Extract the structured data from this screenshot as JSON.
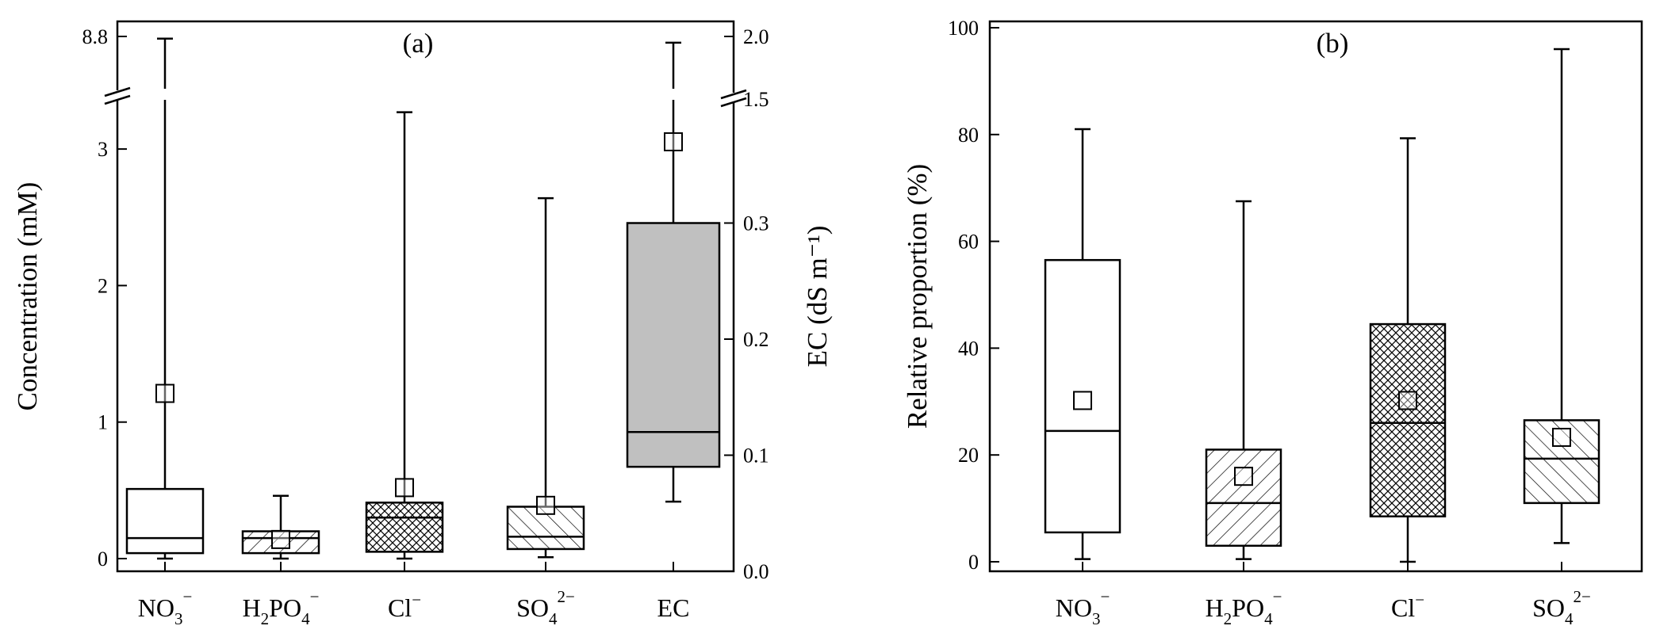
{
  "chart_data": [
    {
      "panel_label": "(a)",
      "type": "box",
      "ylabel": "Concentration (mM)",
      "y2label": "EC (dS m⁻¹)",
      "categories": [
        {
          "main": "NO",
          "sub": "3",
          "sup": "−"
        },
        {
          "main": "H",
          "sub": "2",
          "main2": "PO",
          "sub2": "4",
          "sup": "−"
        },
        {
          "main": "Cl",
          "sup": "−"
        },
        {
          "main": "SO",
          "sub": "4",
          "sup": "2−"
        },
        {
          "main": "EC"
        }
      ],
      "ylim": [
        -0.08,
        3.82
      ],
      "y_break": {
        "lower_max": 3.4,
        "upper_tick": 8.8
      },
      "y_ticks": [
        "0",
        "1",
        "2",
        "3",
        "8.8"
      ],
      "y2lim": [
        0.0,
        1.5
      ],
      "y2_break": {
        "upper_max": 2.0
      },
      "y2_ticks": [
        "0.0",
        "0.1",
        "0.2",
        "0.3",
        "1.5",
        "2.0"
      ],
      "boxes": [
        {
          "category": "NO3-",
          "min": 0.0,
          "q1": 0.04,
          "median": 0.15,
          "q3": 0.51,
          "max": 8.6,
          "mean": 1.21,
          "pattern": "none",
          "axis": "left"
        },
        {
          "category": "H2PO4-",
          "min": 0.0,
          "q1": 0.04,
          "median": 0.15,
          "q3": 0.2,
          "max": 0.46,
          "mean": 0.14,
          "pattern": "diagonal",
          "axis": "left"
        },
        {
          "category": "Cl-",
          "min": 0.0,
          "q1": 0.05,
          "median": 0.3,
          "q3": 0.41,
          "max": 3.27,
          "mean": 0.52,
          "pattern": "crosshatch",
          "axis": "left"
        },
        {
          "category": "SO4 2-",
          "min": 0.01,
          "q1": 0.07,
          "median": 0.16,
          "q3": 0.38,
          "max": 2.64,
          "mean": 0.39,
          "pattern": "back-diagonal",
          "axis": "left"
        },
        {
          "category": "EC",
          "min": 0.06,
          "q1": 0.09,
          "median": 0.12,
          "q3": 0.3,
          "max": 1.95,
          "mean": 0.37,
          "pattern": "gray",
          "axis": "right"
        }
      ]
    },
    {
      "panel_label": "(b)",
      "type": "box",
      "ylabel": "Relative proportion (%)",
      "categories": [
        {
          "main": "NO",
          "sub": "3",
          "sup": "−"
        },
        {
          "main": "H",
          "sub": "2",
          "main2": "PO",
          "sub2": "4",
          "sup": "−"
        },
        {
          "main": "Cl",
          "sup": "−"
        },
        {
          "main": "SO",
          "sub": "4",
          "sup": "2−"
        }
      ],
      "ylim": [
        -2,
        102
      ],
      "y_ticks": [
        "0",
        "20",
        "40",
        "60",
        "80",
        "100"
      ],
      "boxes": [
        {
          "category": "NO3-",
          "min": 0.5,
          "q1": 5.5,
          "median": 24.5,
          "q3": 56.5,
          "max": 81,
          "mean": 30.2,
          "pattern": "none"
        },
        {
          "category": "H2PO4-",
          "min": 0.5,
          "q1": 3,
          "median": 11,
          "q3": 21,
          "max": 67.5,
          "mean": 16,
          "pattern": "diagonal"
        },
        {
          "category": "Cl-",
          "min": 0,
          "q1": 8.5,
          "median": 26,
          "q3": 44.5,
          "max": 79.3,
          "mean": 30.2,
          "pattern": "crosshatch"
        },
        {
          "category": "SO4 2-",
          "min": 3.5,
          "q1": 11,
          "median": 19.3,
          "q3": 26.5,
          "max": 96,
          "mean": 23.3,
          "pattern": "back-diagonal"
        }
      ]
    }
  ]
}
